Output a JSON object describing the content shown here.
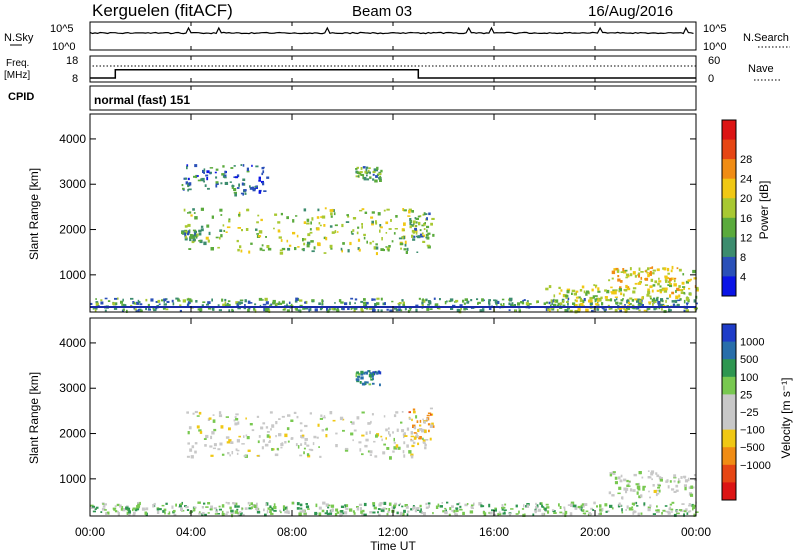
{
  "header": {
    "station": "Kerguelen (fitACF)",
    "beam": "Beam 03",
    "date": "16/Aug/2016"
  },
  "noise_panel": {
    "left_label": "N.Sky",
    "left_ticks": [
      "10^5",
      "10^0"
    ],
    "right_label": "N.Search",
    "right_ticks": [
      "10^5",
      "10^0"
    ]
  },
  "freq_panel": {
    "left_label_line1": "Freq.",
    "left_label_line2": "[MHz]",
    "left_ticks": [
      "18",
      "8"
    ],
    "right_label": "Nave",
    "right_ticks": [
      "60",
      "0"
    ],
    "freq_steps": [
      {
        "t_from": 0.0,
        "t_to": 1.0,
        "value": 8
      },
      {
        "t_from": 1.0,
        "t_to": 13.0,
        "value": 12.6
      },
      {
        "t_from": 13.0,
        "t_to": 24.0,
        "value": 8
      }
    ]
  },
  "cpid_panel": {
    "label": "CPID",
    "value": "normal (fast) 151"
  },
  "x_axis": {
    "label": "Time UT",
    "ticks": [
      "00:00",
      "04:00",
      "08:00",
      "12:00",
      "16:00",
      "20:00",
      "00:00"
    ],
    "range_hours": [
      0,
      24
    ]
  },
  "chart_data": [
    {
      "type": "heatmap",
      "name": "power",
      "ylabel": "Slant Range [km]",
      "ylim": [
        180,
        4550
      ],
      "yticks": [
        "1000",
        "2000",
        "3000",
        "4000"
      ],
      "colorbar_label": "Power [dB]",
      "colorbar_ticks": [
        "4",
        "8",
        "12",
        "16",
        "20",
        "24",
        "28"
      ],
      "colors": [
        "#0a14e6",
        "#2a50b8",
        "#3c8c6e",
        "#5aaa3c",
        "#a8c832",
        "#f0c814",
        "#f08c14",
        "#e64614",
        "#dc1414"
      ],
      "regions": [
        {
          "t": [
            3.7,
            13.4
          ],
          "r": [
            1500,
            2500
          ],
          "level": 0.45
        },
        {
          "t": [
            3.6,
            4.2
          ],
          "r": [
            1800,
            2000
          ],
          "level": 0.3
        },
        {
          "t": [
            10.5,
            11.5
          ],
          "r": [
            3100,
            3400
          ],
          "level": 0.35
        },
        {
          "t": [
            12.6,
            13.6
          ],
          "r": [
            1800,
            2400
          ],
          "level": 0.35
        },
        {
          "t": [
            3.6,
            7.0
          ],
          "r": [
            2800,
            3450
          ],
          "level": 0.2
        },
        {
          "t": [
            20.5,
            24.0
          ],
          "r": [
            600,
            1200
          ],
          "level": 0.6
        },
        {
          "t": [
            0.0,
            24.0
          ],
          "r": [
            200,
            500
          ],
          "level": 0.3
        },
        {
          "t": [
            18.0,
            24.0
          ],
          "r": [
            200,
            800
          ],
          "level": 0.5
        }
      ]
    },
    {
      "type": "heatmap",
      "name": "velocity",
      "ylabel": "Slant Range [km]",
      "ylim": [
        180,
        4550
      ],
      "yticks": [
        "1000",
        "2000",
        "3000",
        "4000"
      ],
      "colorbar_label": "Velocity [m s⁻¹]",
      "colorbar_ticks": [
        "1000",
        "500",
        "100",
        "25",
        "−25",
        "−100",
        "−500",
        "−1000"
      ],
      "colors": [
        "#1e3cc8",
        "#286eaa",
        "#2e9650",
        "#78c850",
        "#c8c8c8",
        "#c8c8c8",
        "#f0c814",
        "#f08c14",
        "#e64614",
        "#dc1414"
      ],
      "regions": [
        {
          "t": [
            3.7,
            13.4
          ],
          "r": [
            1500,
            2500
          ],
          "level": 0.5
        },
        {
          "t": [
            10.5,
            11.5
          ],
          "r": [
            3100,
            3400
          ],
          "level": 0.15
        },
        {
          "t": [
            12.6,
            13.6
          ],
          "r": [
            1800,
            2600
          ],
          "level": 0.7
        },
        {
          "t": [
            20.5,
            24.0
          ],
          "r": [
            600,
            1200
          ],
          "level": 0.45
        },
        {
          "t": [
            0.0,
            24.0
          ],
          "r": [
            200,
            500
          ],
          "level": 0.35
        }
      ]
    }
  ]
}
